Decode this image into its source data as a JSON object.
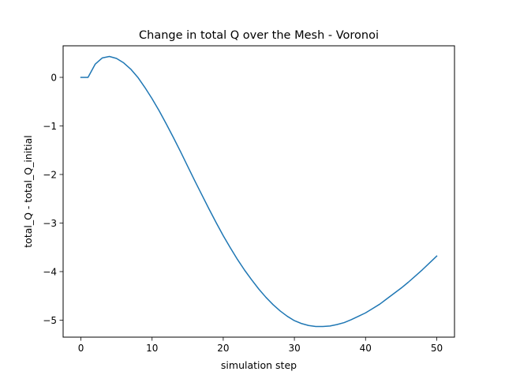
{
  "chart_data": {
    "type": "line",
    "title": "Change in total Q over the Mesh - Voronoi",
    "xlabel": "simulation step",
    "ylabel": "total_Q - total_Q_initial",
    "xlim": [
      -2.5,
      52.5
    ],
    "ylim": [
      -5.35,
      0.65
    ],
    "grid": false,
    "line_color": "#1f77b4",
    "x_ticks": [
      {
        "value": 0,
        "label": "0"
      },
      {
        "value": 10,
        "label": "10"
      },
      {
        "value": 20,
        "label": "20"
      },
      {
        "value": 30,
        "label": "30"
      },
      {
        "value": 40,
        "label": "40"
      },
      {
        "value": 50,
        "label": "50"
      }
    ],
    "y_ticks": [
      {
        "value": 0,
        "label": "0"
      },
      {
        "value": -1,
        "label": "−1"
      },
      {
        "value": -2,
        "label": "−2"
      },
      {
        "value": -3,
        "label": "−3"
      },
      {
        "value": -4,
        "label": "−4"
      },
      {
        "value": -5,
        "label": "−5"
      }
    ],
    "series": [
      {
        "x": [
          0,
          1,
          2,
          3,
          4,
          5,
          6,
          7,
          8,
          9,
          10,
          11,
          12,
          13,
          14,
          15,
          16,
          17,
          18,
          19,
          20,
          21,
          22,
          23,
          24,
          25,
          26,
          27,
          28,
          29,
          30,
          31,
          32,
          33,
          34,
          35,
          36,
          37,
          38,
          39,
          40,
          41,
          42,
          43,
          44,
          45,
          46,
          47,
          48,
          49,
          50
        ],
        "y": [
          0,
          0,
          0.27,
          0.4,
          0.43,
          0.39,
          0.3,
          0.17,
          0.0,
          -0.21,
          -0.44,
          -0.69,
          -0.96,
          -1.24,
          -1.53,
          -1.83,
          -2.13,
          -2.42,
          -2.71,
          -2.99,
          -3.26,
          -3.51,
          -3.75,
          -3.97,
          -4.17,
          -4.36,
          -4.53,
          -4.68,
          -4.81,
          -4.92,
          -5.01,
          -5.07,
          -5.11,
          -5.13,
          -5.13,
          -5.12,
          -5.09,
          -5.05,
          -4.99,
          -4.92,
          -4.85,
          -4.76,
          -4.67,
          -4.56,
          -4.45,
          -4.34,
          -4.22,
          -4.09,
          -3.96,
          -3.82,
          -3.68
        ]
      }
    ]
  }
}
